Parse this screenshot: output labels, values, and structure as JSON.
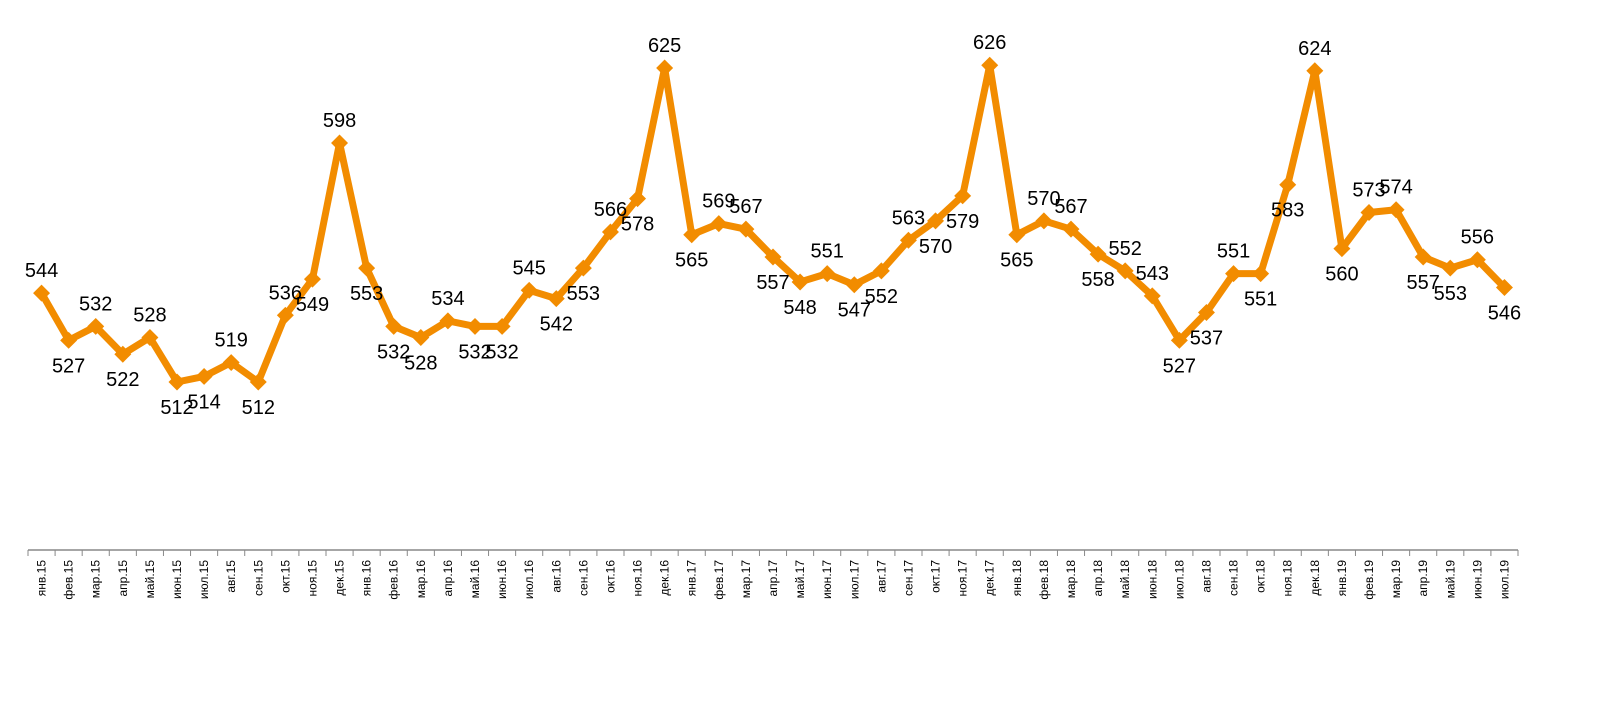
{
  "chart_data": {
    "type": "line",
    "title": "",
    "xlabel": "",
    "ylabel": "",
    "grid": false,
    "legend": "none",
    "line_color": "#F28C00",
    "categories": [
      "янв.15",
      "фев.15",
      "мар.15",
      "апр.15",
      "май.15",
      "июн.15",
      "июл.15",
      "авг.15",
      "сен.15",
      "окт.15",
      "ноя.15",
      "дек.15",
      "янв.16",
      "фев.16",
      "мар.16",
      "апр.16",
      "май.16",
      "июн.16",
      "июл.16",
      "авг.16",
      "сен.16",
      "окт.16",
      "ноя.16",
      "дек.16",
      "янв.17",
      "фев.17",
      "мар.17",
      "апр.17",
      "май.17",
      "июн.17",
      "июл.17",
      "авг.17",
      "сен.17",
      "окт.17",
      "ноя.17",
      "дек.17",
      "янв.18",
      "фев.18",
      "мар.18",
      "апр.18",
      "май.18",
      "июн.18",
      "июл.18",
      "авг.18",
      "сен.18",
      "окт.18",
      "ноя.18",
      "дек.18",
      "янв.19",
      "фев.19",
      "мар.19",
      "апр.19",
      "май.19",
      "июн.19",
      "июл.19"
    ],
    "values": [
      544,
      527,
      532,
      522,
      528,
      512,
      514,
      519,
      512,
      536,
      549,
      598,
      553,
      532,
      528,
      534,
      532,
      532,
      545,
      542,
      553,
      566,
      578,
      625,
      565,
      569,
      567,
      557,
      548,
      551,
      547,
      552,
      563,
      570,
      579,
      626,
      565,
      570,
      567,
      558,
      552,
      543,
      527,
      537,
      551,
      551,
      583,
      624,
      560,
      573,
      574,
      557,
      553,
      556,
      546
    ],
    "ylim": [
      400,
      640
    ]
  }
}
